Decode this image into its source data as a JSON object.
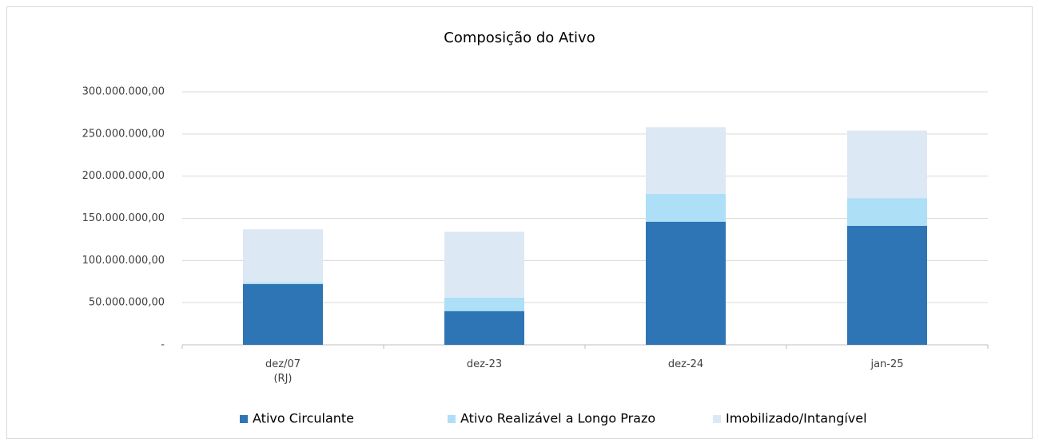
{
  "chart_data": {
    "type": "bar",
    "stacked": true,
    "title": "Composição do Ativo",
    "categories": [
      "dez/07\n(RJ)",
      "dez-23",
      "dez-24",
      "jan-25"
    ],
    "series": [
      {
        "name": "Ativo Circulante",
        "color": "#2e75b6",
        "values": [
          72000000,
          40000000,
          146000000,
          141000000
        ]
      },
      {
        "name": "Ativo Realizável a Longo Prazo",
        "color": "#addff6",
        "values": [
          2000000,
          16000000,
          33000000,
          33000000
        ]
      },
      {
        "name": "Imobilizado/Intangível",
        "color": "#dde8f5",
        "values": [
          63000000,
          78000000,
          79000000,
          80000000
        ]
      }
    ],
    "ylim": [
      0,
      300000000
    ],
    "yticks": [
      {
        "value": 0,
        "label": "-"
      },
      {
        "value": 50000000,
        "label": "50.000.000,00"
      },
      {
        "value": 100000000,
        "label": "100.000.000,00"
      },
      {
        "value": 150000000,
        "label": "150.000.000,00"
      },
      {
        "value": 200000000,
        "label": "200.000.000,00"
      },
      {
        "value": 250000000,
        "label": "250.000.000,00"
      },
      {
        "value": 300000000,
        "label": "300.000.000,00"
      }
    ],
    "grid": true,
    "legend": "bottom"
  }
}
